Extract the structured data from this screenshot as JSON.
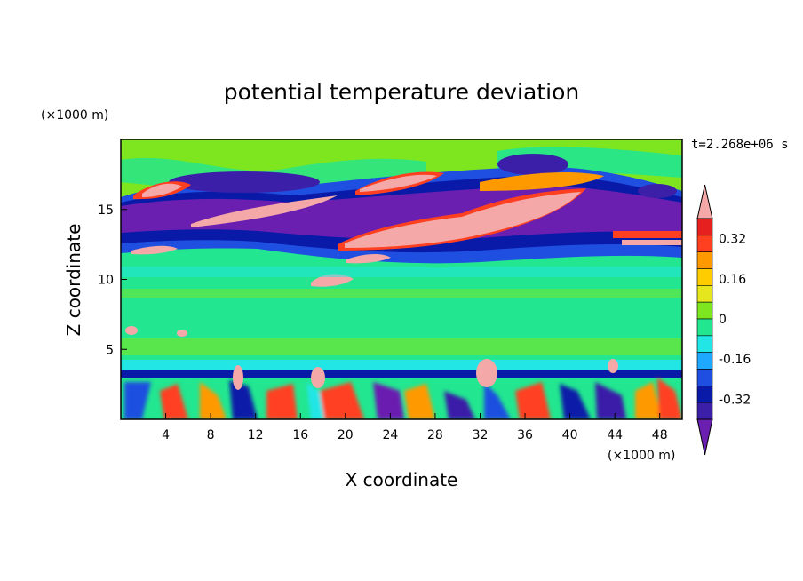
{
  "chart_data": {
    "type": "heatmap",
    "title": "potential temperature deviation",
    "xlabel": "X coordinate",
    "ylabel": "Z coordinate",
    "x_units": "(×1000 m)",
    "y_units": "(×1000 m)",
    "time_label": "t=2.268e+06 s",
    "xlim": [
      0,
      50
    ],
    "ylim": [
      0,
      20
    ],
    "x_ticks": [
      4,
      8,
      12,
      16,
      20,
      24,
      28,
      32,
      36,
      40,
      44,
      48
    ],
    "y_ticks": [
      5,
      10,
      15
    ],
    "colorbar": {
      "levels": [
        -0.48,
        -0.4,
        -0.32,
        -0.24,
        -0.16,
        -0.08,
        0,
        0.08,
        0.16,
        0.24,
        0.32,
        0.4,
        0.48
      ],
      "colors": [
        "#6a1fb0",
        "#3b1fa8",
        "#0a1aa8",
        "#1f4fe0",
        "#1fa8ff",
        "#22e6e6",
        "#22e690",
        "#7ee61f",
        "#e6e61f",
        "#ffcc00",
        "#ff9900",
        "#ff4020",
        "#e61f1f",
        "#f5a8a8"
      ],
      "tick_labels": [
        "0.32",
        "0.16",
        "0",
        "-0.16",
        "-0.32"
      ],
      "tick_values": [
        0.32,
        0.16,
        0,
        -0.16,
        -0.32
      ]
    },
    "grid": false,
    "legend": "colorbar-right"
  }
}
